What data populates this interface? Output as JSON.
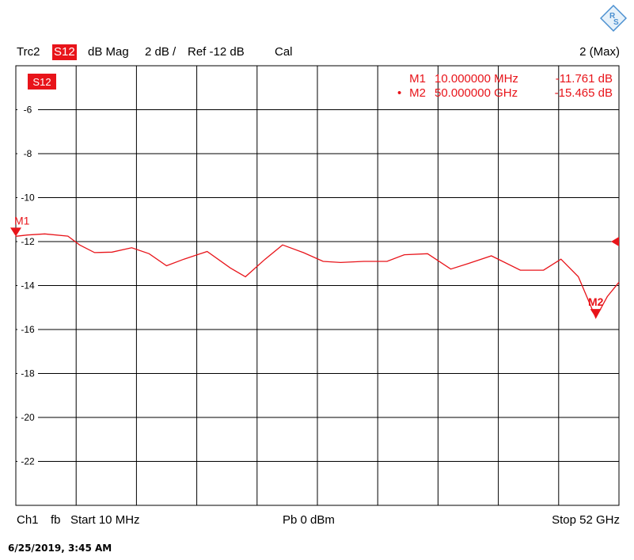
{
  "header": {
    "trace": "Trc2",
    "param": "S12",
    "format": "dB Mag",
    "scale": "2 dB /",
    "ref": "Ref -12 dB",
    "cal": "Cal",
    "right": "2 (Max)"
  },
  "footer": {
    "channel": "Ch1",
    "fb": "fb",
    "start": "Start  10 MHz",
    "power": "Pb   0 dBm",
    "stop": "Stop  52 GHz"
  },
  "timestamp": "6/25/2019, 3:45 AM",
  "colors": {
    "trace": "#e8141a",
    "grid": "#000000"
  },
  "logo_icon": "rohde-schwarz-logo",
  "markers": [
    {
      "label": "M1",
      "prefix": "",
      "freq": "10.000000 MHz",
      "value": "-11.761 dB",
      "x_ghz": 0.01,
      "y_db": -11.761,
      "flag": "M1"
    },
    {
      "label": "M2",
      "prefix": "•",
      "freq": "50.000000 GHz",
      "value": "-15.465 dB",
      "x_ghz": 50.0,
      "y_db": -15.465,
      "flag": "M2"
    }
  ],
  "chart_data": {
    "type": "line",
    "xlim": [
      0.01,
      52
    ],
    "ylim": [
      -24,
      -4
    ],
    "yticks": [
      -6,
      -8,
      -10,
      -12,
      -14,
      -16,
      -18,
      -20,
      -22
    ],
    "ytick_labels": [
      "-6",
      "-8",
      "-10",
      "-12",
      "-14",
      "-16",
      "-18",
      "-20",
      "-22"
    ],
    "trace_label": "S12",
    "ref_level": -12,
    "series": [
      {
        "x": [
          0.01,
          1.0,
          2.5,
          4.5,
          5.5,
          6.8,
          8.3,
          10.0,
          11.5,
          13.0,
          14.5,
          16.5,
          18.5,
          19.8,
          21.5,
          23.0,
          24.8,
          26.5,
          28.0,
          30.0,
          32.0,
          33.5,
          35.5,
          37.5,
          39.0,
          41.0,
          43.5,
          45.5,
          47.0,
          48.5,
          50.0,
          51.0,
          52.0
        ],
        "y": [
          -11.76,
          -11.7,
          -11.65,
          -11.75,
          -12.15,
          -12.5,
          -12.48,
          -12.28,
          -12.55,
          -13.1,
          -12.8,
          -12.45,
          -13.2,
          -13.6,
          -12.8,
          -12.15,
          -12.5,
          -12.9,
          -12.95,
          -12.9,
          -12.9,
          -12.6,
          -12.55,
          -13.25,
          -13.0,
          -12.65,
          -13.3,
          -13.3,
          -12.8,
          -13.6,
          -15.465,
          -14.5,
          -13.85
        ]
      }
    ]
  }
}
